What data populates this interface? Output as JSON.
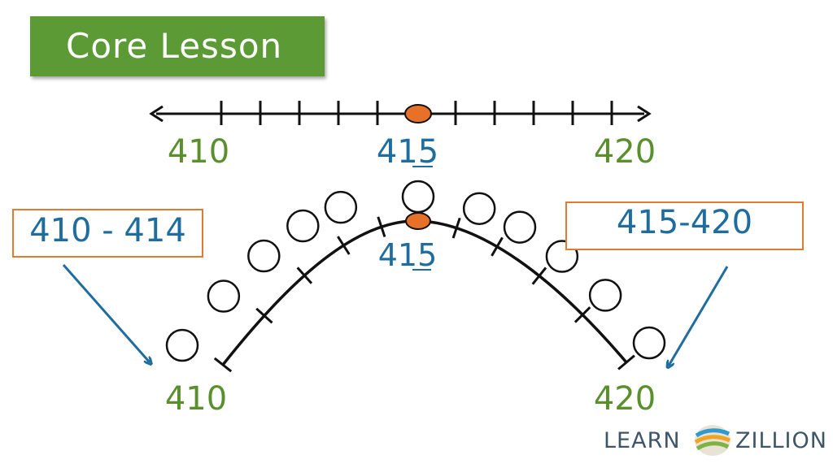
{
  "banner": {
    "title": "Core Lesson"
  },
  "number_line": {
    "labels": {
      "left": "410",
      "middle": "415",
      "right": "420"
    },
    "highlight_color": "#e8712a"
  },
  "hill": {
    "labels": {
      "left": "410",
      "top": "415",
      "right": "420"
    }
  },
  "boxes": {
    "left": "410 - 414",
    "right": "415-420"
  },
  "colors": {
    "green": "#5b9a35",
    "blue": "#1e6d9e",
    "orange": "#e27b2f",
    "label_green": "#5a8f2e"
  },
  "logo": {
    "left": "LEARN",
    "right": "ZILLION"
  }
}
